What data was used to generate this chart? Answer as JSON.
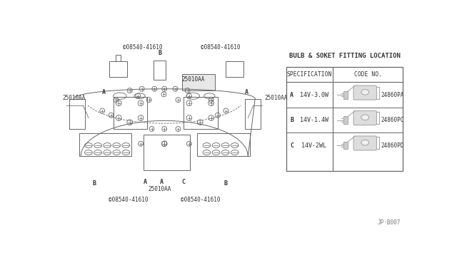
{
  "bg_color": "#ffffff",
  "line_color": "#666666",
  "fill_light": "#e8e8e8",
  "title": "BULB & SOKET FITTING LOCATION",
  "footer": "JP·B007",
  "table_header_col1": "SPECIFICATION",
  "table_header_col2": "CODE NO.",
  "rows": [
    {
      "label": "A",
      "spec": "14V-3.0W",
      "code": "24860PA"
    },
    {
      "label": "B",
      "spec": "14V-1.4W",
      "code": "24860PC"
    },
    {
      "label": "C",
      "spec": "14V-2WL",
      "code": "24860PD"
    }
  ]
}
